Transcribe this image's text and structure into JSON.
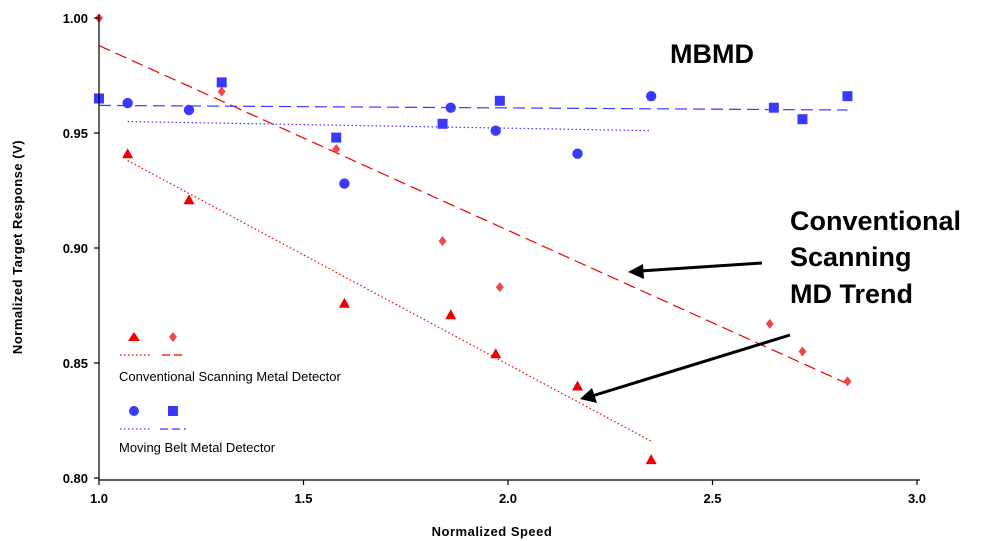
{
  "chart_data": {
    "type": "scatter",
    "title": "",
    "xlabel": "Normalized Speed",
    "ylabel": "Normalized Target Response (V)",
    "xlim": [
      1.0,
      3.0
    ],
    "ylim": [
      0.8,
      1.0
    ],
    "x_ticks": [
      "1.0",
      "1.5",
      "2.0",
      "2.5",
      "3.0"
    ],
    "y_ticks": [
      "0.80",
      "0.85",
      "0.90",
      "0.95",
      "1.00"
    ],
    "grid": false,
    "legend": [
      {
        "label": "Conventional Scanning Metal Detector",
        "color": "#ff2020",
        "markers": [
          "triangle",
          "diamond"
        ],
        "lines": [
          "dotted",
          "dashed"
        ]
      },
      {
        "label": "Moving Belt Metal Detector",
        "color": "#3a3aff",
        "markers": [
          "circle",
          "square"
        ],
        "lines": [
          "dotted",
          "dashed"
        ]
      }
    ],
    "series": [
      {
        "marker": "triangle",
        "color": "#ee0000",
        "x": [
          1.07,
          1.22,
          1.6,
          1.86,
          1.97,
          2.17,
          2.35
        ],
        "y": [
          0.941,
          0.921,
          0.876,
          0.871,
          0.854,
          0.84,
          0.808
        ]
      },
      {
        "marker": "diamond",
        "color": "#f04848",
        "x": [
          1.0,
          1.3,
          1.58,
          1.84,
          1.98,
          2.64,
          2.72,
          2.83
        ],
        "y": [
          1.0,
          0.968,
          0.943,
          0.903,
          0.883,
          0.867,
          0.855,
          0.842
        ]
      },
      {
        "marker": "circle",
        "color": "#3a3aff",
        "x": [
          1.07,
          1.22,
          1.6,
          1.86,
          1.97,
          2.17,
          2.35
        ],
        "y": [
          0.963,
          0.96,
          0.928,
          0.961,
          0.951,
          0.941,
          0.966
        ]
      },
      {
        "marker": "square",
        "color": "#3a3aff",
        "x": [
          1.0,
          1.3,
          1.58,
          1.84,
          1.98,
          2.65,
          2.72,
          2.83
        ],
        "y": [
          0.965,
          0.972,
          0.948,
          0.954,
          0.964,
          0.961,
          0.956,
          0.966
        ]
      }
    ],
    "trends": [
      {
        "style": "dotted",
        "color": "#ee0000",
        "x": [
          1.07,
          2.35
        ],
        "y": [
          0.938,
          0.816
        ]
      },
      {
        "style": "dashed",
        "color": "#ee0000",
        "x": [
          1.0,
          2.83
        ],
        "y": [
          0.988,
          0.841
        ]
      },
      {
        "style": "dotted",
        "color": "#3a3aff",
        "x": [
          1.07,
          2.35
        ],
        "y": [
          0.955,
          0.951
        ]
      },
      {
        "style": "dashed",
        "color": "#3a3aff",
        "x": [
          1.0,
          2.83
        ],
        "y": [
          0.962,
          0.96
        ]
      }
    ],
    "annotations": [
      {
        "text": "MBMD"
      },
      {
        "lines": [
          "Conventional",
          "Scanning",
          "MD Trend"
        ]
      }
    ]
  }
}
